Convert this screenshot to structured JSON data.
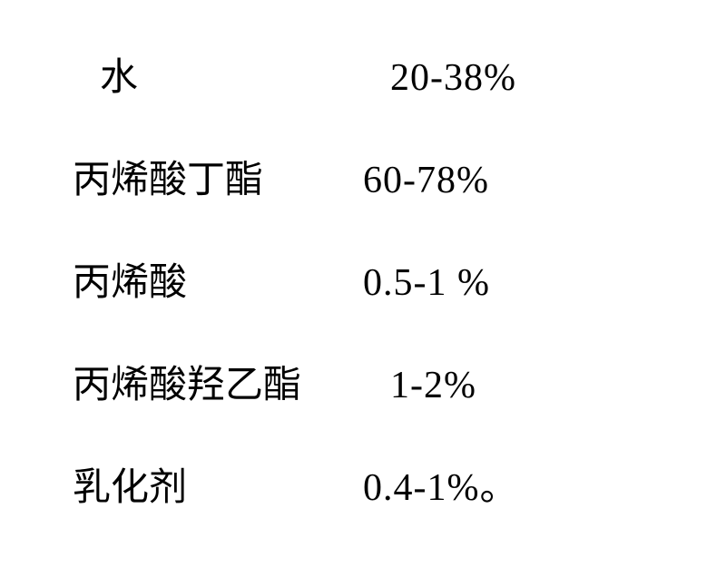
{
  "rows": [
    {
      "label": "水",
      "value": "20-38%",
      "label_indent": true,
      "value_indent": false
    },
    {
      "label": "丙烯酸丁酯",
      "value": "60-78%",
      "label_indent": false,
      "value_indent": false
    },
    {
      "label": "丙烯酸",
      "value": "0.5-1 %",
      "label_indent": false,
      "value_indent": false
    },
    {
      "label": "丙烯酸羟乙酯",
      "value": "1-2%",
      "label_indent": false,
      "value_indent": true
    },
    {
      "label": "乳化剂",
      "value": "0.4-1%。",
      "label_indent": false,
      "value_indent": false
    }
  ],
  "style": {
    "font_size": 42,
    "text_color": "#000000",
    "background_color": "#ffffff",
    "font_family_cjk": "SimSun",
    "font_family_latin": "Times New Roman",
    "label_min_width": 320
  }
}
